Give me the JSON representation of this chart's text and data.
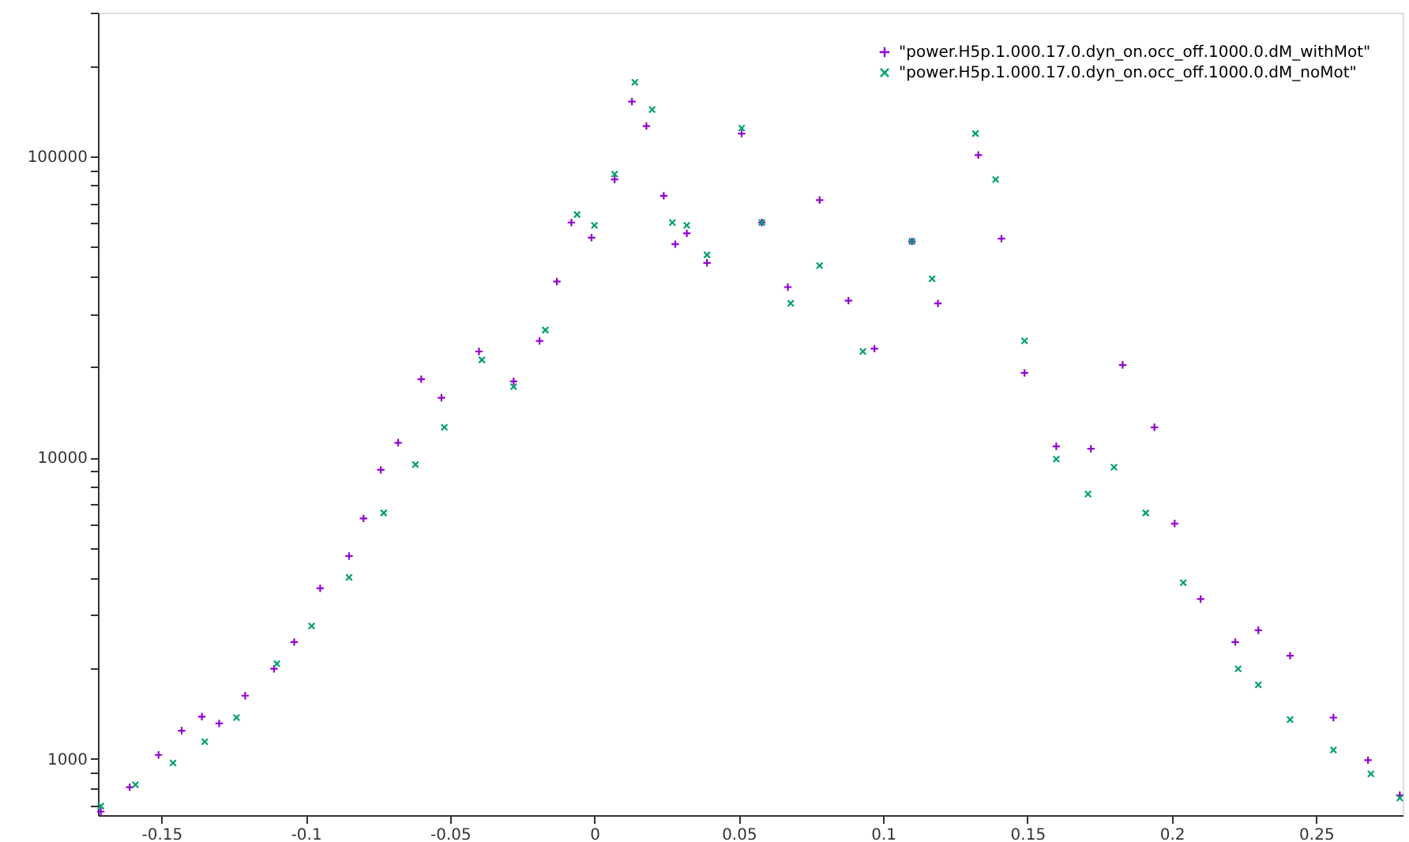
{
  "chart_data": {
    "type": "scatter",
    "xlim": [
      -0.172,
      0.28
    ],
    "ylim": [
      650,
      300000
    ],
    "log": "y",
    "grid": false,
    "legend": "top right",
    "xticks": [
      -0.15,
      -0.1,
      -0.05,
      0,
      0.05,
      0.1,
      0.15,
      0.2,
      0.25
    ],
    "yticks": [
      {
        "value": 700,
        "label": null
      },
      {
        "value": 800,
        "label": null
      },
      {
        "value": 900,
        "label": null
      },
      1000,
      {
        "value": 2000,
        "label": null
      },
      {
        "value": 3000,
        "label": null
      },
      {
        "value": 4000,
        "label": null
      },
      {
        "value": 5000,
        "label": null
      },
      {
        "value": 6000,
        "label": null
      },
      {
        "value": 7000,
        "label": null
      },
      {
        "value": 8000,
        "label": null
      },
      {
        "value": 9000,
        "label": null
      },
      10000,
      {
        "value": 20000,
        "label": null
      },
      {
        "value": 30000,
        "label": null
      },
      {
        "value": 40000,
        "label": null
      },
      {
        "value": 50000,
        "label": null
      },
      {
        "value": 60000,
        "label": null
      },
      {
        "value": 70000,
        "label": null
      },
      {
        "value": 80000,
        "label": null
      },
      {
        "value": 90000,
        "label": null
      },
      100000,
      {
        "value": 200000,
        "label": null
      },
      {
        "value": 300000,
        "label": null
      }
    ],
    "series": [
      {
        "name": "\"power.H5p.1.000.17.0.dyn_on.occ_off.1000.0.dM_withMot\"",
        "color": "#9400d3",
        "marker": "cross",
        "x": [
          -0.171,
          -0.161,
          -0.151,
          -0.143,
          -0.136,
          -0.13,
          -0.121,
          -0.111,
          -0.104,
          -0.095,
          -0.085,
          -0.08,
          -0.074,
          -0.068,
          -0.06,
          -0.053,
          -0.04,
          -0.028,
          -0.019,
          -0.013,
          -0.008,
          -0.001,
          0.007,
          0.013,
          0.018,
          0.024,
          0.028,
          0.032,
          0.039,
          0.051,
          0.058,
          0.067,
          0.078,
          0.088,
          0.097,
          0.11,
          0.119,
          0.133,
          0.141,
          0.149,
          0.16,
          0.172,
          0.183,
          0.194,
          0.201,
          0.21,
          0.222,
          0.23,
          0.241,
          0.256,
          0.268,
          0.279
        ],
        "values": [
          668,
          805,
          1030,
          1240,
          1380,
          1310,
          1620,
          1990,
          2440,
          3680,
          4710,
          6280,
          9100,
          11200,
          18200,
          15800,
          22500,
          17900,
          24400,
          38400,
          60300,
          53700,
          83800,
          152000,
          126000,
          74000,
          51100,
          55500,
          44300,
          119000,
          60300,
          36800,
          71600,
          33200,
          23000,
          52200,
          32500,
          101000,
          53300,
          19100,
          10900,
          10700,
          20300,
          12600,
          6040,
          3390,
          2440,
          2670,
          2200,
          1370,
          990,
          757
        ]
      },
      {
        "name": "\"power.H5p.1.000.17.0.dyn_on.occ_off.1000.0.dM_noMot\"",
        "color": "#009e73",
        "marker": "x",
        "x": [
          -0.171,
          -0.159,
          -0.146,
          -0.135,
          -0.124,
          -0.11,
          -0.098,
          -0.085,
          -0.073,
          -0.062,
          -0.052,
          -0.039,
          -0.028,
          -0.017,
          -0.006,
          0.0,
          0.007,
          0.014,
          0.02,
          0.027,
          0.032,
          0.039,
          0.051,
          0.058,
          0.068,
          0.078,
          0.093,
          0.11,
          0.117,
          0.132,
          0.139,
          0.149,
          0.16,
          0.171,
          0.18,
          0.191,
          0.204,
          0.223,
          0.23,
          0.241,
          0.256,
          0.269,
          0.279
        ],
        "values": [
          697,
          820,
          968,
          1140,
          1370,
          2070,
          2760,
          4000,
          6550,
          9480,
          12600,
          21100,
          17200,
          26500,
          64100,
          59000,
          87300,
          176000,
          143000,
          60300,
          59000,
          47100,
          124000,
          60300,
          32500,
          43400,
          22500,
          52200,
          39200,
          119000,
          83800,
          24400,
          9880,
          7570,
          9290,
          6550,
          3840,
          1990,
          1760,
          1350,
          1070,
          891,
          741
        ]
      }
    ]
  }
}
